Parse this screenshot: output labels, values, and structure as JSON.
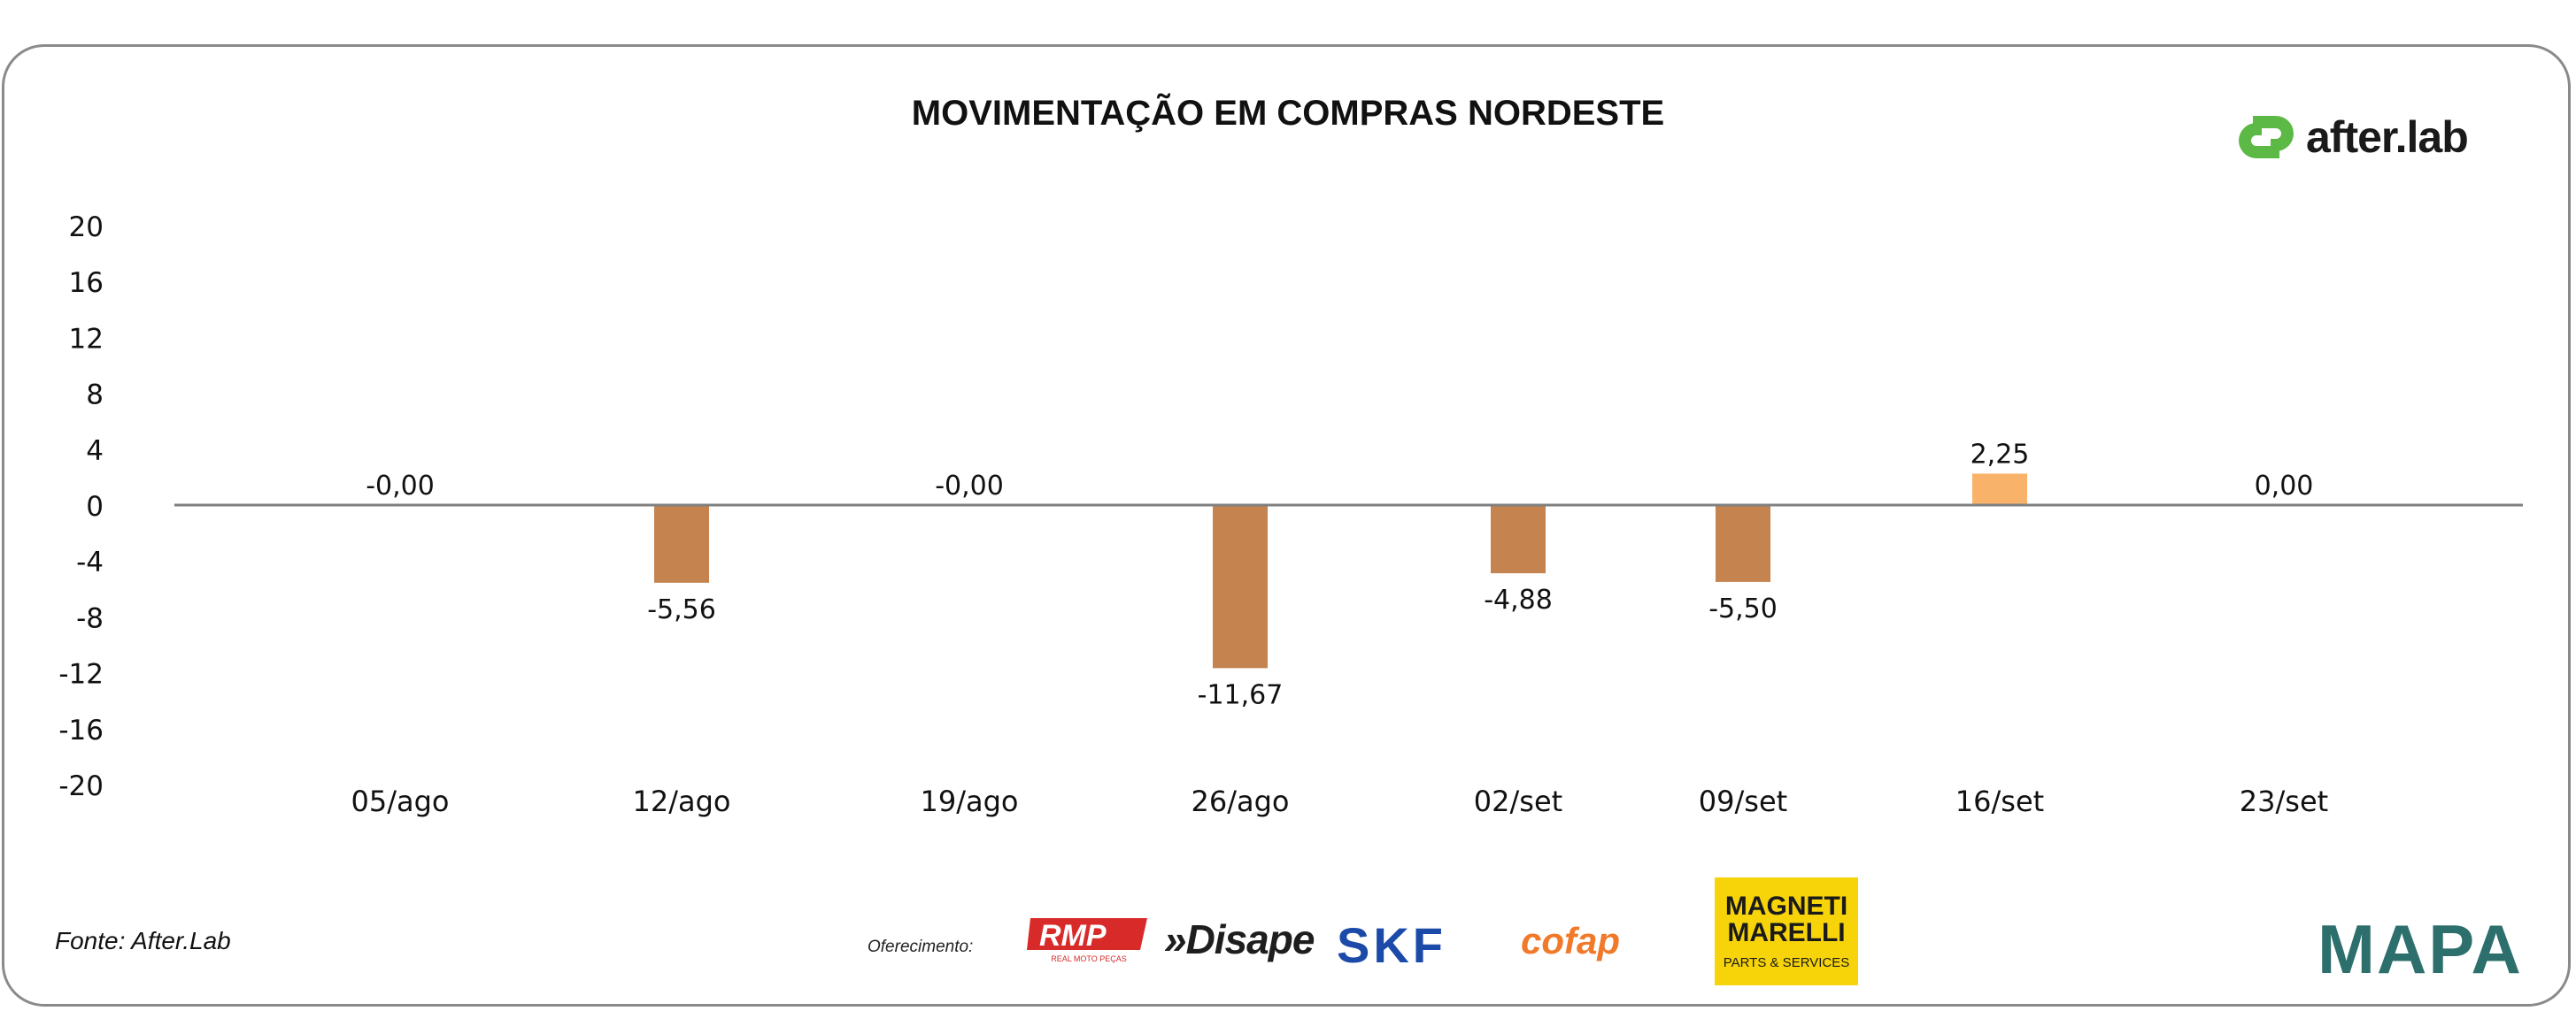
{
  "chart_data": {
    "type": "bar",
    "title": "MOVIMENTAÇÃO EM COMPRAS NORDESTE",
    "categories": [
      "05/ago",
      "12/ago",
      "19/ago",
      "26/ago",
      "02/set",
      "09/set",
      "16/set",
      "23/set"
    ],
    "values": [
      0,
      -5.56,
      0,
      -11.67,
      -4.88,
      -5.5,
      2.25,
      0
    ],
    "data_labels": [
      "-0,00",
      "-5,56",
      "-0,00",
      "-11,67",
      "-4,88",
      "-5,50",
      "2,25",
      "0,00"
    ],
    "y_ticks": [
      20,
      16,
      12,
      8,
      4,
      0,
      -4,
      -8,
      -12,
      -16,
      -20
    ],
    "ylim": [
      -20,
      20
    ],
    "xlabel": "",
    "ylabel": "",
    "grid": false,
    "legend": "none",
    "colors": {
      "negative_bar": "#c4834f",
      "positive_bar": "#f8b26a",
      "zero_line": "#808080"
    }
  },
  "brand": {
    "name": "after.lab",
    "icon": "afterlab-logo-icon",
    "icon_color": "#5cb946"
  },
  "footer": {
    "source": "Fonte: After.Lab",
    "sponsor_label": "Oferecimento:",
    "sponsors": {
      "rmp": "RMP",
      "rmp_sub": "REAL MOTO PEÇAS",
      "disape": "»Disape",
      "skf": "SKF",
      "cofap": "cofap",
      "magneti_marelli": "MAGNETI MARELLI",
      "magneti_marelli_sub": "PARTS & SERVICES",
      "mapa": "MAPA"
    }
  }
}
